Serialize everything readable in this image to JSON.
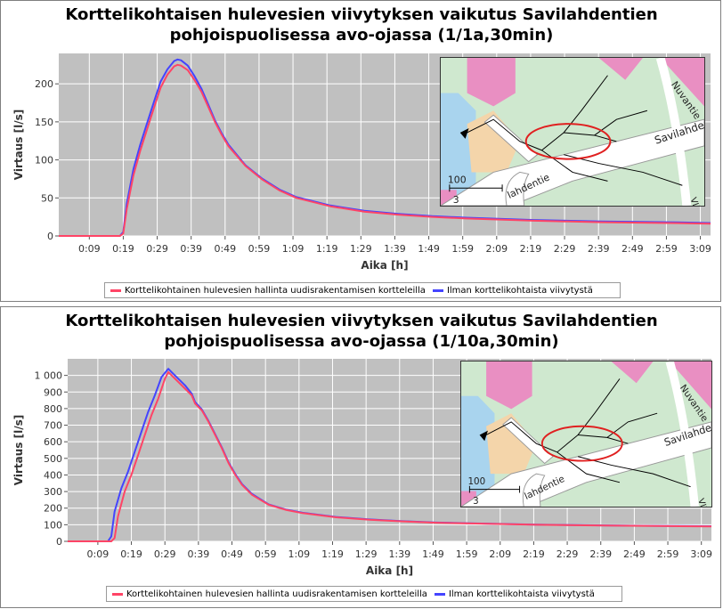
{
  "colors": {
    "series_red": "#ff4466",
    "series_blue": "#4444ff",
    "plot_bg": "#c0c0c0",
    "grid": "#ffffff",
    "map_green": "#cfe8cf",
    "map_road": "#ffffff",
    "map_tan": "#f4d5aa",
    "map_pink": "#e98fc2",
    "map_water": "#a9d4ee",
    "map_ellipse": "#e02020"
  },
  "chart_data": [
    {
      "type": "line",
      "title_line1": "Korttelikohtaisen hulevesien viivytyksen vaikutus Savilahdentien",
      "title_line2": "pohjoispuolisessa avo-ojassa  (1/1a,30min)",
      "xlabel": "Aika [h]",
      "ylabel": "Virtaus [l/s]",
      "xlim": [
        0,
        192
      ],
      "ylim": [
        0,
        240
      ],
      "x_ticks": [
        9,
        19,
        29,
        39,
        49,
        59,
        69,
        79,
        89,
        99,
        109,
        119,
        129,
        139,
        149,
        159,
        169,
        179,
        189
      ],
      "x_tick_labels": [
        "0:09",
        "0:19",
        "0:29",
        "0:39",
        "0:49",
        "0:59",
        "1:09",
        "1:19",
        "1:29",
        "1:39",
        "1:49",
        "1:59",
        "2:09",
        "2:19",
        "2:29",
        "2:39",
        "2:49",
        "2:59",
        "3:09"
      ],
      "y_ticks": [
        0,
        50,
        100,
        150,
        200
      ],
      "y_tick_labels": [
        "0",
        "50",
        "100",
        "150",
        "200"
      ],
      "grid": true,
      "legend_position": "bottom",
      "series": [
        {
          "name": "Korttelikohtainen hulevesien hallinta uudisrakentamisen kortteleilla",
          "color": "#ff4466",
          "x": [
            0,
            18,
            19,
            20,
            22,
            24,
            26,
            28,
            30,
            32,
            34,
            35,
            36,
            38,
            40,
            42,
            44,
            46,
            48,
            50,
            55,
            60,
            65,
            70,
            80,
            90,
            100,
            110,
            120,
            140,
            160,
            180,
            192
          ],
          "y": [
            0,
            0,
            3,
            35,
            80,
            112,
            140,
            168,
            195,
            212,
            223,
            225,
            224,
            218,
            205,
            190,
            170,
            150,
            133,
            118,
            92,
            74,
            60,
            50,
            39,
            32,
            28,
            25,
            23,
            20,
            18,
            17,
            16
          ]
        },
        {
          "name": "Ilman korttelikohtaista viivytystä",
          "color": "#4444ff",
          "x": [
            0,
            18,
            19,
            20,
            22,
            24,
            26,
            28,
            30,
            32,
            34,
            35,
            36,
            38,
            40,
            42,
            44,
            46,
            48,
            50,
            55,
            60,
            65,
            70,
            80,
            90,
            100,
            110,
            120,
            140,
            160,
            180,
            192
          ],
          "y": [
            0,
            0,
            5,
            42,
            88,
            120,
            148,
            176,
            203,
            219,
            230,
            232,
            231,
            224,
            210,
            194,
            173,
            152,
            135,
            120,
            93,
            75,
            61,
            51,
            40,
            33,
            29,
            26,
            24,
            21,
            19,
            18,
            17
          ]
        }
      ],
      "inset_map_labels": [
        "Nuvantie",
        "Savilahdentie",
        "lahdentie",
        "100",
        "3",
        "VII"
      ]
    },
    {
      "type": "line",
      "title_line1": "Korttelikohtaisen hulevesien viivytyksen vaikutus Savilahdentien",
      "title_line2": "pohjoispuolisessa avo-ojassa  (1/10a,30min)",
      "xlabel": "Aika [h]",
      "ylabel": "Virtaus [l/s]",
      "xlim": [
        0,
        192
      ],
      "ylim": [
        0,
        1100
      ],
      "x_ticks": [
        9,
        19,
        29,
        39,
        49,
        59,
        69,
        79,
        89,
        99,
        109,
        119,
        129,
        139,
        149,
        159,
        169,
        179,
        189
      ],
      "x_tick_labels": [
        "0:09",
        "0:19",
        "0:29",
        "0:39",
        "0:49",
        "0:59",
        "1:09",
        "1:19",
        "1:29",
        "1:39",
        "1:49",
        "1:59",
        "2:09",
        "2:19",
        "2:29",
        "2:39",
        "2:49",
        "2:59",
        "3:09"
      ],
      "y_ticks": [
        0,
        100,
        200,
        300,
        400,
        500,
        600,
        700,
        800,
        900,
        1000
      ],
      "y_tick_labels": [
        "0",
        "100",
        "200",
        "300",
        "400",
        "500",
        "600",
        "700",
        "800",
        "900",
        "1 000"
      ],
      "grid": true,
      "legend_position": "bottom",
      "series": [
        {
          "name": "Korttelikohtainen hulevesien hallinta uudisrakentamisen kortteleilla",
          "color": "#ff4466",
          "x": [
            0,
            13,
            14,
            15,
            17,
            19,
            21,
            23,
            25,
            27,
            29,
            30,
            31,
            33,
            35,
            37,
            38,
            40,
            42,
            44,
            46,
            48,
            50,
            52,
            55,
            60,
            65,
            70,
            80,
            90,
            100,
            110,
            120,
            140,
            160,
            180,
            192
          ],
          "y": [
            0,
            0,
            20,
            150,
            300,
            400,
            520,
            640,
            760,
            860,
            980,
            1020,
            1000,
            960,
            920,
            880,
            830,
            790,
            720,
            640,
            560,
            470,
            400,
            340,
            280,
            220,
            190,
            170,
            145,
            130,
            120,
            112,
            108,
            100,
            95,
            92,
            90
          ]
        },
        {
          "name": "Ilman korttelikohtaista viivytystä",
          "color": "#4444ff",
          "x": [
            0,
            12,
            13,
            14,
            16,
            18,
            20,
            22,
            24,
            26,
            28,
            30,
            31,
            33,
            35,
            37,
            38,
            40,
            42,
            44,
            46,
            48,
            50,
            52,
            55,
            60,
            65,
            70,
            80,
            90,
            100,
            110,
            120,
            140,
            160,
            180,
            192
          ],
          "y": [
            0,
            0,
            30,
            180,
            320,
            420,
            540,
            660,
            780,
            880,
            990,
            1040,
            1020,
            980,
            940,
            890,
            840,
            795,
            725,
            645,
            565,
            475,
            405,
            345,
            285,
            222,
            192,
            172,
            147,
            132,
            121,
            113,
            109,
            101,
            96,
            93,
            91
          ]
        }
      ],
      "inset_map_labels": [
        "Nuvantie",
        "Savilahdentie",
        "lahdentie",
        "100",
        "3",
        "VII"
      ]
    }
  ]
}
